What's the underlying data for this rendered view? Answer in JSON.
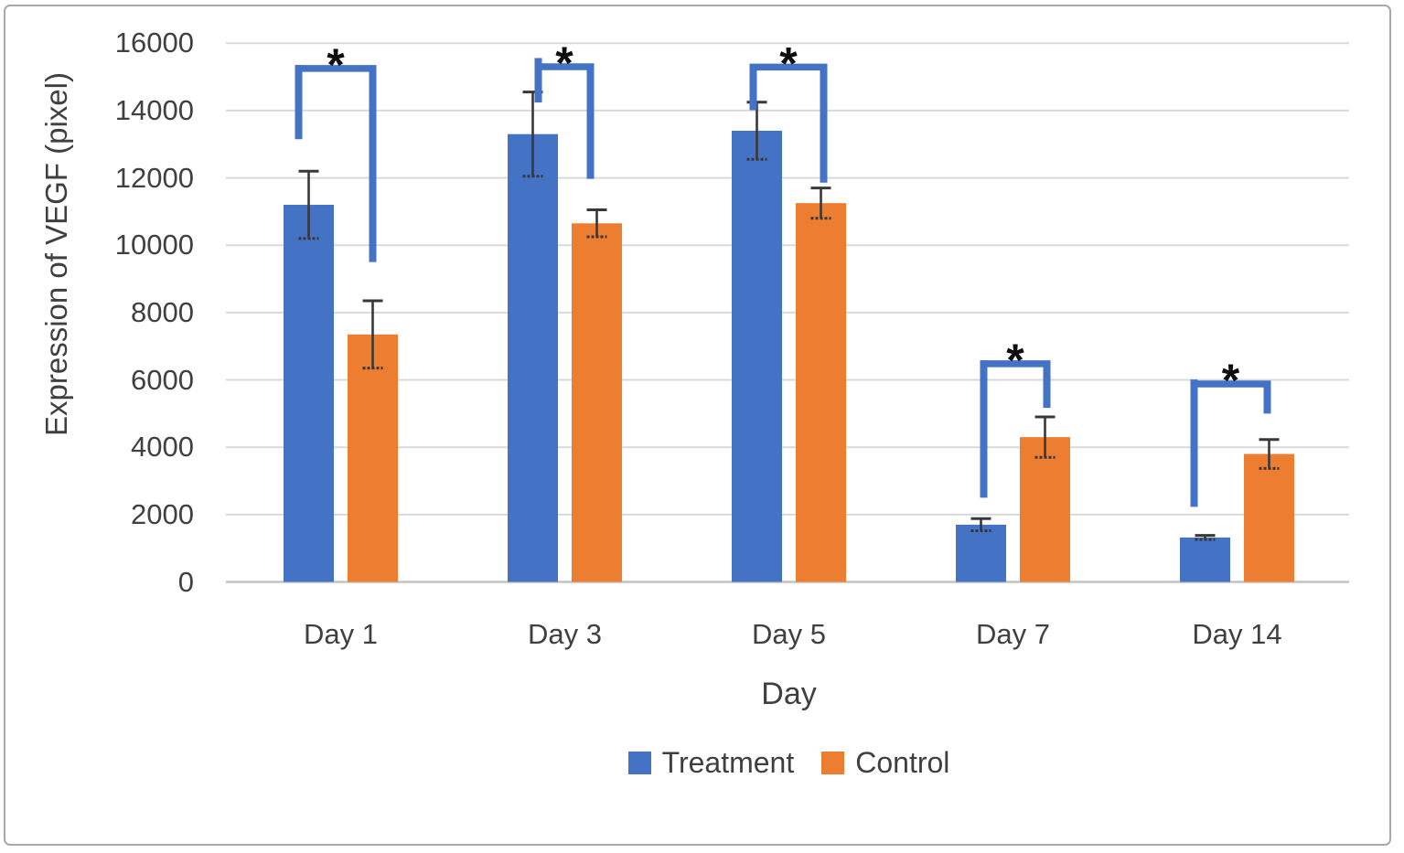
{
  "figure": {
    "border_color": "#a9a9a9",
    "background_color": "#ffffff",
    "text_color": "#3f3f3f"
  },
  "chart_data": {
    "type": "bar",
    "title": "",
    "xlabel": "Day",
    "ylabel": "Expression of VEGF (pixel)",
    "categories": [
      "Day 1",
      "Day 3",
      "Day 5",
      "Day 7",
      "Day 14"
    ],
    "series": [
      {
        "name": "Treatment",
        "color": "#4472C4",
        "values": [
          11200,
          13300,
          13400,
          1700,
          1320
        ],
        "errors": [
          1000,
          1250,
          850,
          180,
          60
        ]
      },
      {
        "name": "Control",
        "color": "#ED7D31",
        "values": [
          7350,
          10650,
          11250,
          4300,
          3800
        ],
        "errors": [
          1000,
          400,
          450,
          600,
          430
        ]
      }
    ],
    "ylim": [
      0,
      16000
    ],
    "yticks": [
      0,
      2000,
      4000,
      6000,
      8000,
      10000,
      12000,
      14000,
      16000
    ],
    "grid": "horizontal",
    "gridline_color": "#d9d9d9",
    "axis_line_color": "#c3c3c3",
    "error_bar_color": "#383838",
    "legend_position": "bottom",
    "bracket_color": "#4472C4",
    "significance_marker": "*",
    "significance_brackets": [
      {
        "category": "Day 1",
        "label": "*",
        "y": 15250,
        "left_leg_top": 15350,
        "left_leg_bottom": 13150,
        "right_leg_bottom": 9500,
        "left_dx": -11,
        "right_dx": 0
      },
      {
        "category": "Day 3",
        "label": "*",
        "y": 15300,
        "left_leg_top": 15560,
        "left_leg_bottom": 14240,
        "right_leg_bottom": 11970,
        "left_dx": 6,
        "right_dx": -7
      },
      {
        "category": "Day 5",
        "label": "*",
        "y": 15290,
        "left_leg_top": 15370,
        "left_leg_bottom": 14010,
        "right_leg_bottom": 11860,
        "left_dx": -4,
        "right_dx": 3
      },
      {
        "category": "Day 7",
        "label": "*",
        "y": 6480,
        "left_leg_top": 6585,
        "left_leg_bottom": 2500,
        "right_leg_bottom": 5170,
        "left_dx": 3,
        "right_dx": 2
      },
      {
        "category": "Day 14",
        "label": "*",
        "y": 5880,
        "left_leg_top": 6010,
        "left_leg_bottom": 2230,
        "right_leg_bottom": 5000,
        "left_dx": -12,
        "right_dx": -2
      }
    ]
  }
}
